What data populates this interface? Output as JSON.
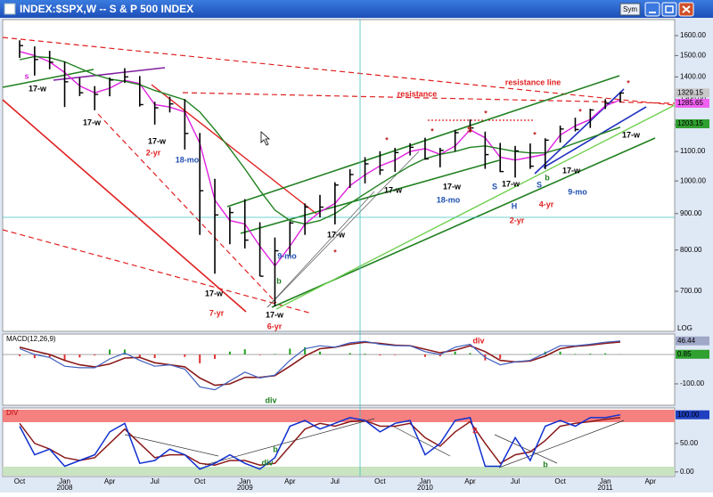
{
  "window": {
    "title": "INDEX:$SPX,W -- S & P 500 INDEX",
    "sym_button": "Sym",
    "log_label": "LOG"
  },
  "chart_data": [
    {
      "type": "ohlc",
      "log_scale": true,
      "categories": [
        "Oct",
        null,
        null,
        "Jan",
        null,
        null,
        "Apr",
        null,
        null,
        "Jul",
        null,
        null,
        "Oct",
        null,
        null,
        "Jan",
        null,
        null,
        "Apr",
        null,
        null,
        "Jul",
        null,
        null,
        "Oct",
        null,
        null,
        "Jan",
        null,
        null,
        "Apr",
        null,
        null,
        "Jul",
        null,
        null,
        "Oct",
        null,
        null,
        "Jan",
        null,
        null,
        "Apr"
      ],
      "years": [
        null,
        null,
        null,
        "2008",
        null,
        null,
        null,
        null,
        null,
        null,
        null,
        null,
        null,
        null,
        null,
        "2009",
        null,
        null,
        null,
        null,
        null,
        null,
        null,
        null,
        null,
        null,
        null,
        "2010",
        null,
        null,
        null,
        null,
        null,
        null,
        null,
        null,
        null,
        null,
        null,
        "2011",
        null,
        null,
        null
      ],
      "high": [
        1576,
        1545,
        1523,
        1471,
        1396,
        1359,
        1397,
        1440,
        1404,
        1292,
        1313,
        1303,
        1168,
        1007,
        919,
        943,
        875,
        833,
        878,
        930,
        956,
        996,
        1039,
        1080,
        1101,
        1113,
        1130,
        1150,
        1113,
        1180,
        1220,
        1173,
        1131,
        1120,
        1129,
        1148,
        1196,
        1227,
        1263,
        1303,
        1332,
        null,
        null
      ],
      "low": [
        1489,
        1406,
        1435,
        1270,
        1316,
        1257,
        1315,
        1373,
        1272,
        1200,
        1248,
        1107,
        840,
        741,
        815,
        804,
        735,
        667,
        784,
        840,
        889,
        869,
        978,
        992,
        1020,
        1030,
        1086,
        1071,
        1045,
        1101,
        1170,
        1040,
        1029,
        1011,
        1040,
        1039,
        1132,
        1174,
        1187,
        1262,
        1289,
        null,
        null
      ],
      "close": [
        1549,
        1481,
        1468,
        1378,
        1330,
        1323,
        1386,
        1400,
        1280,
        1267,
        1283,
        1166,
        969,
        896,
        903,
        826,
        735,
        798,
        873,
        919,
        919,
        987,
        1021,
        1057,
        1036,
        1096,
        1115,
        1074,
        1104,
        1169,
        1187,
        1089,
        1031,
        1102,
        1049,
        1141,
        1183,
        1181,
        1258,
        1286,
        1329,
        null,
        null
      ],
      "moving_averages": [
        {
          "color": "#e020e0",
          "values": [
            1520,
            1500,
            1470,
            1420,
            1360,
            1330,
            1350,
            1385,
            1370,
            1280,
            1270,
            1250,
            1130,
            940,
            880,
            870,
            810,
            760,
            810,
            870,
            905,
            930,
            985,
            1020,
            1050,
            1070,
            1100,
            1110,
            1090,
            1120,
            1180,
            1150,
            1080,
            1070,
            1080,
            1090,
            1160,
            1195,
            1220,
            1275,
            1300,
            null,
            null
          ]
        },
        {
          "color": "#208020",
          "values": [
            1480,
            1495,
            1490,
            1470,
            1440,
            1410,
            1390,
            1380,
            1365,
            1340,
            1320,
            1300,
            1250,
            1180,
            1110,
            1040,
            970,
            910,
            880,
            870,
            880,
            900,
            930,
            960,
            990,
            1020,
            1050,
            1075,
            1090,
            1100,
            1115,
            1120,
            1110,
            1100,
            1095,
            1095,
            1110,
            1130,
            1150,
            1170,
            1190,
            null,
            null
          ]
        }
      ],
      "ylim": [
        615,
        1685
      ],
      "yticks": [
        {
          "value": 700,
          "label": "700.00"
        },
        {
          "value": 800,
          "label": "800.00"
        },
        {
          "value": 900,
          "label": "900.00"
        },
        {
          "value": 1000,
          "label": "1000.00"
        },
        {
          "value": 1100,
          "label": "1100.00"
        },
        {
          "value": 1200,
          "label": "1200.00"
        },
        {
          "value": 1300,
          "label": "1300.00"
        },
        {
          "value": 1400,
          "label": "1400.00"
        },
        {
          "value": 1500,
          "label": "1500.00"
        },
        {
          "value": 1600,
          "label": "1600.00"
        }
      ],
      "value_boxes": [
        {
          "value": 1329.15,
          "label": "1329.15",
          "color": "#c8c8c8"
        },
        {
          "value": 1285.65,
          "label": "1285.65",
          "color": "#f060f0"
        },
        {
          "value": 1203.15,
          "label": "1203.15",
          "color": "#30a030"
        }
      ],
      "annotations": [
        {
          "text": "s",
          "color": "#d020d0"
        },
        {
          "text": "17-w",
          "color": "#000000"
        },
        {
          "text": "17-w",
          "color": "#000000"
        },
        {
          "text": "17-w",
          "color": "#000000"
        },
        {
          "text": "2-yr",
          "color": "#e02020"
        },
        {
          "text": "18-mo",
          "color": "#2050b0"
        },
        {
          "text": "17-w",
          "color": "#000000"
        },
        {
          "text": "7-yr",
          "color": "#e02020"
        },
        {
          "text": "b",
          "color": "#208020"
        },
        {
          "text": "17-w",
          "color": "#000000"
        },
        {
          "text": "6-yr",
          "color": "#e02020"
        },
        {
          "text": "9-mo",
          "color": "#2050b0"
        },
        {
          "text": "17-w",
          "color": "#000000"
        },
        {
          "text": "*",
          "color": "#c02020"
        },
        {
          "text": "*",
          "color": "#c02020"
        },
        {
          "text": "*",
          "color": "#c02020"
        },
        {
          "text": "*",
          "color": "#c02020"
        },
        {
          "text": "*",
          "color": "#c02020"
        },
        {
          "text": "*",
          "color": "#c02020"
        },
        {
          "text": "*",
          "color": "#c02020"
        },
        {
          "text": "17-w",
          "color": "#000000"
        },
        {
          "text": "17-w",
          "color": "#000000"
        },
        {
          "text": "18-mo",
          "color": "#2050b0"
        },
        {
          "text": "S",
          "color": "#e02020"
        },
        {
          "text": "S",
          "color": "#2050b0"
        },
        {
          "text": "17-w",
          "color": "#000000"
        },
        {
          "text": "H",
          "color": "#2050b0"
        },
        {
          "text": "2-yr",
          "color": "#e02020"
        },
        {
          "text": "S",
          "color": "#2050b0"
        },
        {
          "text": "b",
          "color": "#208020"
        },
        {
          "text": "4-yr",
          "color": "#e02020"
        },
        {
          "text": "17-w",
          "color": "#000000"
        },
        {
          "text": "9-mo",
          "color": "#2050b0"
        },
        {
          "text": "17-w",
          "color": "#000000"
        },
        {
          "text": "resistance",
          "color": "#e02020"
        },
        {
          "text": "resistance line",
          "color": "#e02020"
        }
      ]
    },
    {
      "type": "macd",
      "title": "MACD(12,26,9)",
      "macd": {
        "color": "#4060c0",
        "values": [
          20,
          0,
          -10,
          -40,
          -45,
          -45,
          -15,
          5,
          -20,
          -40,
          -35,
          -50,
          -110,
          -120,
          -90,
          -60,
          -80,
          -70,
          -20,
          20,
          30,
          25,
          40,
          45,
          35,
          30,
          30,
          10,
          0,
          25,
          35,
          -10,
          -35,
          -25,
          -20,
          5,
          30,
          30,
          35,
          42,
          46.44,
          null,
          null
        ]
      },
      "signal": {
        "color": "#8b1a1a",
        "values": [
          25,
          12,
          0,
          -20,
          -35,
          -42,
          -32,
          -12,
          -10,
          -28,
          -35,
          -42,
          -80,
          -105,
          -100,
          -78,
          -78,
          -72,
          -40,
          -5,
          20,
          25,
          35,
          42,
          38,
          32,
          30,
          18,
          6,
          15,
          30,
          10,
          -20,
          -25,
          -22,
          -5,
          20,
          28,
          32,
          38,
          43,
          null,
          null
        ]
      },
      "histogram": {
        "up_color": "#20a020",
        "down_color": "#e03030",
        "values": [
          -5,
          -12,
          -10,
          -20,
          -10,
          -3,
          17,
          17,
          -10,
          -12,
          0,
          -8,
          -30,
          -15,
          10,
          18,
          -2,
          2,
          20,
          25,
          10,
          0,
          5,
          3,
          -3,
          -2,
          0,
          -8,
          -6,
          10,
          5,
          -20,
          -15,
          0,
          2,
          10,
          10,
          2,
          3,
          4,
          0.85,
          null,
          null
        ]
      },
      "ylim": [
        -173,
        70
      ],
      "yticks": [
        {
          "value": -100,
          "label": "-100.00"
        }
      ],
      "value_boxes": [
        {
          "value": 46.44,
          "label": "46.44",
          "color": "#a0a8c8"
        },
        {
          "value": 0.85,
          "label": "0.85",
          "color": "#30a030"
        }
      ],
      "annotations": [
        {
          "text": "div",
          "color": "#e02020"
        },
        {
          "text": "div",
          "color": "#208020"
        }
      ]
    },
    {
      "type": "line",
      "title": "DIV",
      "series": [
        {
          "color": "#1030d0",
          "values": [
            80,
            30,
            40,
            10,
            20,
            30,
            70,
            85,
            15,
            20,
            40,
            30,
            5,
            15,
            30,
            15,
            5,
            25,
            80,
            90,
            75,
            85,
            95,
            90,
            70,
            85,
            90,
            30,
            50,
            90,
            95,
            10,
            10,
            60,
            20,
            80,
            90,
            80,
            95,
            95,
            100,
            null,
            null
          ]
        },
        {
          "color": "#8b1a1a",
          "values": [
            85,
            50,
            40,
            25,
            20,
            25,
            50,
            75,
            50,
            25,
            30,
            30,
            15,
            12,
            20,
            20,
            12,
            15,
            45,
            75,
            85,
            80,
            88,
            90,
            80,
            80,
            85,
            60,
            45,
            70,
            88,
            50,
            15,
            30,
            35,
            55,
            80,
            85,
            88,
            92,
            95,
            null,
            null
          ]
        }
      ],
      "ylim": [
        -8,
        112
      ],
      "yticks": [
        {
          "value": 0,
          "label": "0.00"
        },
        {
          "value": 50,
          "label": "50.00"
        }
      ],
      "value_boxes": [
        {
          "value": 100,
          "label": "100.00",
          "color": "#2040c0"
        }
      ],
      "annotations": [
        {
          "text": "S",
          "color": "#e02020"
        },
        {
          "text": "b",
          "color": "#208020"
        },
        {
          "text": "b",
          "color": "#208020"
        },
        {
          "text": "div",
          "color": "#208020"
        }
      ]
    }
  ]
}
